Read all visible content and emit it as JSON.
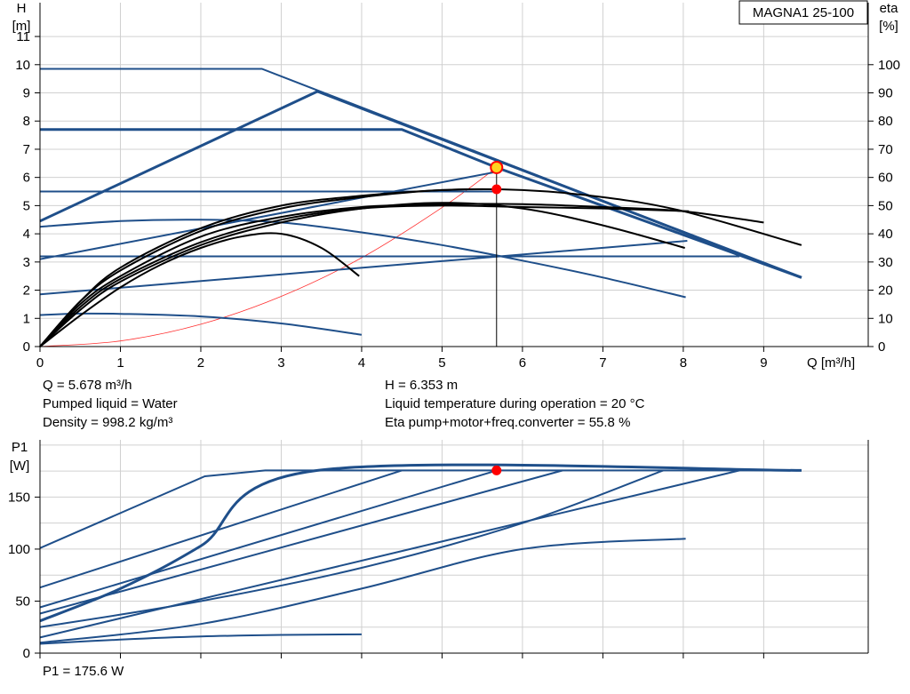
{
  "model_label": "MAGNA1 25-100",
  "colors": {
    "curve_blue": "#1f4f8a",
    "grid": "#d0d0d0",
    "efficiency_black": "#000000",
    "system_curve": "#ff3030",
    "duty_point": "#ff0000",
    "duty_marker_fill": "#ffd21f"
  },
  "info": {
    "flow": "Q = 5.678 m³/h",
    "head": "H = 6.353 m",
    "liquid": "Pumped liquid = Water",
    "temperature": "Liquid temperature during operation = 20 °C",
    "density": "Density = 998.2 kg/m³",
    "eta": "Eta pump+motor+freq.converter = 55.8 %",
    "power": "P1 = 175.6 W"
  },
  "chart_data": [
    {
      "type": "line",
      "name": "head_efficiency",
      "ylabel_left": [
        "H",
        "[m]"
      ],
      "ylabel_right": [
        "eta",
        "[%]"
      ],
      "xlabel": "Q [m³/h]",
      "xlim": [
        0,
        10.3
      ],
      "ylim": [
        0,
        12.2
      ],
      "xticks": [
        0,
        1,
        2,
        3,
        4,
        5,
        6,
        7,
        8,
        9
      ],
      "yticks_left": [
        0,
        1,
        2,
        3,
        4,
        5,
        6,
        7,
        8,
        9,
        10,
        11
      ],
      "yticks_right": [
        0,
        10,
        20,
        30,
        40,
        50,
        60,
        70,
        80,
        90,
        100
      ],
      "grid": true,
      "head_curves": [
        {
          "x": [
            0,
            2.76,
            9.47
          ],
          "y": [
            9.85,
            9.85,
            2.45
          ],
          "bold": false
        },
        {
          "x": [
            0,
            3.45,
            9.47
          ],
          "y": [
            4.45,
            9.05,
            2.45
          ],
          "bold": true
        },
        {
          "x": [
            0,
            4.5,
            5.68,
            9.47
          ],
          "y": [
            7.7,
            7.7,
            6.35,
            2.45
          ],
          "bold": true
        },
        {
          "x": [
            0,
            5.68
          ],
          "y": [
            5.5,
            5.5
          ],
          "bold": false
        },
        {
          "x": [
            0,
            5.68
          ],
          "y": [
            3.1,
            6.2
          ],
          "bold": false
        },
        {
          "x": [
            0,
            8.7
          ],
          "y": [
            3.2,
            3.2
          ],
          "bold": false
        },
        {
          "x": [
            0,
            8.05
          ],
          "y": [
            1.85,
            3.75
          ],
          "bold": false
        },
        {
          "x": [
            0,
            1,
            2,
            3,
            4,
            5,
            6,
            7,
            8.03
          ],
          "y": [
            4.25,
            4.45,
            4.5,
            4.4,
            4.05,
            3.6,
            3.05,
            2.45,
            1.75
          ],
          "bold": false
        },
        {
          "x": [
            0,
            0.5,
            1,
            2,
            3,
            4.0
          ],
          "y": [
            1.12,
            1.17,
            1.16,
            1.07,
            0.82,
            0.42
          ],
          "bold": false
        }
      ],
      "efficiency_curves": [
        {
          "x": [
            0,
            0.5,
            1,
            1.5,
            2,
            2.5,
            3,
            3.5,
            3.97
          ],
          "y": [
            0,
            11,
            21,
            29,
            35,
            39,
            40,
            35,
            25
          ]
        },
        {
          "x": [
            0,
            0.5,
            1,
            2,
            3,
            4,
            5,
            6,
            7,
            8.02
          ],
          "y": [
            0,
            13,
            23,
            36,
            44,
            49,
            51,
            49,
            43,
            35
          ]
        },
        {
          "x": [
            0,
            0.5,
            1,
            2,
            3,
            4,
            5,
            6,
            7,
            8,
            9
          ],
          "y": [
            0,
            15,
            25,
            39,
            46,
            49.5,
            50.5,
            50.5,
            49.5,
            48,
            44
          ]
        },
        {
          "x": [
            0,
            0.5,
            1,
            2,
            3,
            4,
            5,
            6,
            7,
            8,
            9.47
          ],
          "y": [
            0,
            16,
            27,
            41,
            49,
            53,
            55.5,
            55.5,
            53,
            48,
            36
          ]
        },
        {
          "x": [
            0,
            0.5,
            1,
            2,
            3,
            4,
            5,
            6,
            7,
            8.07
          ],
          "y": [
            0,
            14,
            24,
            37,
            45,
            49,
            50,
            49.5,
            49,
            48
          ]
        },
        {
          "x": [
            0,
            0.5,
            1,
            2,
            3,
            4,
            5,
            5.68
          ],
          "y": [
            0,
            16,
            28,
            42,
            50,
            53.5,
            55.5,
            55.8
          ]
        }
      ],
      "system_curve": {
        "x": [
          0,
          1,
          2,
          3,
          4,
          5,
          5.678
        ],
        "y": [
          0,
          0.2,
          0.79,
          1.78,
          3.15,
          4.93,
          6.353
        ]
      },
      "duty_point": {
        "q": 5.678,
        "h": 6.353,
        "eta": 55.8
      }
    },
    {
      "type": "line",
      "name": "power",
      "ylabel": [
        "P1",
        "[W]"
      ],
      "xlim": [
        0,
        10.3
      ],
      "ylim": [
        0,
        205
      ],
      "yticks": [
        0,
        50,
        100,
        150
      ],
      "grid": true,
      "power_curves": [
        {
          "x": [
            0,
            2.05,
            2.8,
            9.47
          ],
          "y": [
            101,
            170,
            175.6,
            175.6
          ],
          "bold": false
        },
        {
          "x": [
            0,
            4.5
          ],
          "y": [
            63,
            175.6
          ],
          "bold": false
        },
        {
          "x": [
            0,
            1,
            2,
            3.45,
            9.47
          ],
          "y": [
            31,
            62,
            103,
            175.6,
            175.6
          ],
          "bold": true
        },
        {
          "x": [
            0,
            5.68
          ],
          "y": [
            44,
            175.6
          ],
          "bold": false
        },
        {
          "x": [
            0,
            6.5
          ],
          "y": [
            38,
            175.6
          ],
          "bold": false
        },
        {
          "x": [
            0,
            2,
            4,
            6,
            7.75
          ],
          "y": [
            25,
            50,
            82,
            125,
            175.6
          ],
          "bold": false
        },
        {
          "x": [
            0,
            8.7
          ],
          "y": [
            15,
            175.6
          ],
          "bold": false
        },
        {
          "x": [
            0,
            2,
            4,
            6,
            8.03
          ],
          "y": [
            10,
            28,
            62,
            100,
            110
          ],
          "bold": false
        },
        {
          "x": [
            0,
            1,
            2,
            3,
            4.0
          ],
          "y": [
            9,
            13,
            16,
            17.5,
            18
          ],
          "bold": false
        }
      ],
      "duty_point": {
        "q": 5.678,
        "p1": 175.6
      }
    }
  ]
}
